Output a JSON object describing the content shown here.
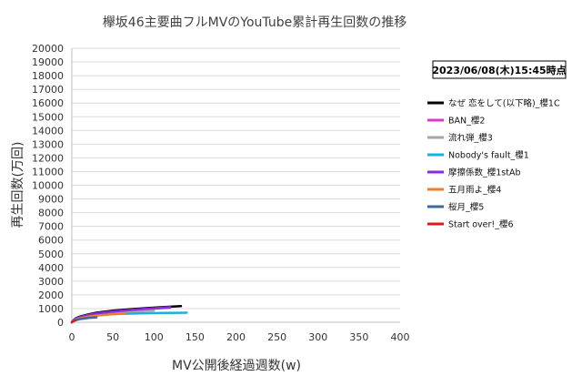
{
  "chart_data": {
    "type": "line",
    "title": "欅坂46主要曲フルMVのYouTube累計再生回数の推移",
    "xlabel": "MV公開後経過週数(w)",
    "ylabel": "再生回数(万回)",
    "xlim": [
      0,
      400
    ],
    "ylim": [
      0,
      20000
    ],
    "x_ticks": [
      0,
      50,
      100,
      150,
      200,
      250,
      300,
      350,
      400
    ],
    "y_ticks": [
      0,
      1000,
      2000,
      3000,
      4000,
      5000,
      6000,
      7000,
      8000,
      9000,
      10000,
      11000,
      12000,
      13000,
      14000,
      15000,
      16000,
      17000,
      18000,
      19000,
      20000
    ],
    "grid": "horizontal",
    "legend_position": "right",
    "date_box": "2023/06/08(木)15:45時点",
    "series": [
      {
        "name": "なぜ 恋をして(以下略)_櫻1C",
        "color": "#000000",
        "x": [
          0,
          2,
          5,
          10,
          20,
          30,
          50,
          70,
          90,
          110,
          133
        ],
        "y": [
          0,
          150,
          300,
          420,
          580,
          700,
          850,
          950,
          1030,
          1100,
          1180
        ]
      },
      {
        "name": "BAN_櫻2",
        "color": "#d63cc8",
        "x": [
          0,
          2,
          5,
          10,
          20,
          30,
          50,
          70,
          90,
          110,
          120
        ],
        "y": [
          0,
          130,
          260,
          380,
          530,
          640,
          780,
          880,
          960,
          1030,
          1060
        ]
      },
      {
        "name": "流れ弾_櫻3",
        "color": "#a6a6a6",
        "x": [
          0,
          2,
          5,
          10,
          20,
          30,
          50,
          70,
          90,
          100
        ],
        "y": [
          0,
          110,
          220,
          320,
          450,
          540,
          670,
          760,
          830,
          860
        ]
      },
      {
        "name": "Nobody's fault_櫻1",
        "color": "#1ab0e0",
        "x": [
          0,
          2,
          5,
          10,
          20,
          30,
          50,
          70,
          90,
          110,
          130,
          140
        ],
        "y": [
          0,
          140,
          260,
          360,
          470,
          530,
          590,
          630,
          655,
          675,
          690,
          700
        ]
      },
      {
        "name": "摩擦係数_櫻1stAb",
        "color": "#8a2be2",
        "x": [
          0,
          2,
          5,
          10,
          20,
          30,
          50,
          70,
          90,
          110,
          120
        ],
        "y": [
          0,
          120,
          250,
          370,
          520,
          630,
          780,
          890,
          980,
          1060,
          1100
        ]
      },
      {
        "name": "五月雨よ_櫻4",
        "color": "#ed7d31",
        "x": [
          0,
          2,
          5,
          10,
          20,
          30,
          50,
          65
        ],
        "y": [
          0,
          100,
          200,
          290,
          410,
          490,
          590,
          640
        ]
      },
      {
        "name": "桜月_櫻5",
        "color": "#3a6b9e",
        "x": [
          0,
          2,
          5,
          10,
          20,
          30
        ],
        "y": [
          0,
          80,
          160,
          230,
          310,
          360
        ]
      },
      {
        "name": "Start over!_櫻6",
        "color": "#e01818",
        "x": [
          0,
          1,
          2,
          3,
          4
        ],
        "y": [
          0,
          60,
          100,
          130,
          150
        ]
      }
    ]
  }
}
